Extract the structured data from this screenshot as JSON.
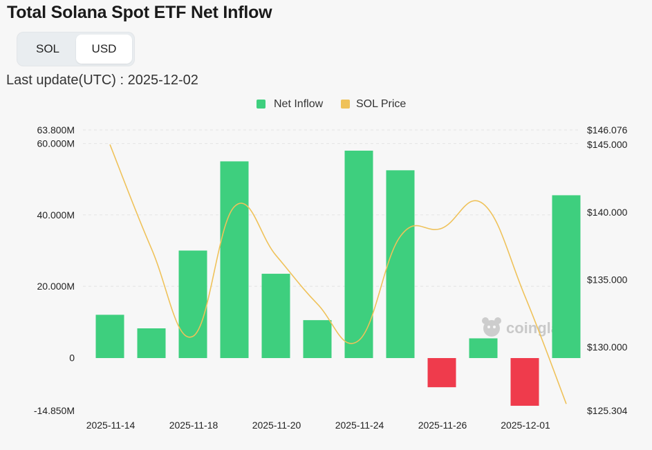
{
  "header": {
    "title": "Total Solana Spot ETF Net Inflow",
    "toggle": {
      "options": [
        "SOL",
        "USD"
      ],
      "selected": "USD"
    },
    "last_update_label": "Last update(UTC) : 2025-12-02"
  },
  "watermark": {
    "text": "coinglass",
    "icon": "mascot-icon"
  },
  "colors": {
    "positive": "#3ecf7e",
    "negative": "#ef3b4c",
    "price_line": "#efc25a",
    "grid": "#e3e3e3"
  },
  "chart_data": {
    "type": "bar",
    "title": "Total Solana Spot ETF Net Inflow",
    "legend": {
      "position": "top-center",
      "entries": [
        "Net Inflow",
        "SOL Price"
      ]
    },
    "x_tick_labels": [
      "2025-11-14",
      "2025-11-18",
      "2025-11-20",
      "2025-11-24",
      "2025-11-26",
      "2025-12-01"
    ],
    "y_left": {
      "ylim": [
        -14.85,
        63.8
      ],
      "unit": "M",
      "tick_labels": [
        "63.800M",
        "60.000M",
        "40.000M",
        "20.000M",
        "0",
        "-14.850M"
      ],
      "tick_values": [
        63.8,
        60,
        40,
        20,
        0,
        -14.85
      ]
    },
    "y_right": {
      "ylim": [
        125.304,
        146.076
      ],
      "tick_labels": [
        "$146.076",
        "$145.000",
        "$140.000",
        "$135.000",
        "$130.000",
        "$125.304"
      ],
      "tick_values": [
        146.076,
        145,
        140,
        135,
        130,
        125.304
      ]
    },
    "series": [
      {
        "name": "Net Inflow",
        "type": "bar",
        "axis": "left",
        "values": [
          12.0,
          8.2,
          30.0,
          55.0,
          23.5,
          10.5,
          58.0,
          52.5,
          -8.3,
          5.4,
          -13.5,
          45.5
        ]
      },
      {
        "name": "SOL Price",
        "type": "line",
        "axis": "right",
        "values": [
          145.0,
          137.3,
          130.8,
          140.4,
          136.8,
          133.2,
          130.5,
          138.2,
          138.8,
          140.6,
          133.8,
          125.8
        ]
      }
    ],
    "grid": true
  }
}
